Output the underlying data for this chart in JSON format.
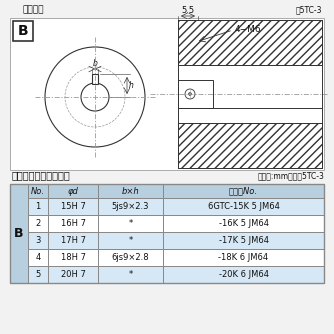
{
  "bg_color": "#f2f2f2",
  "title_diagram": "軸穴形状",
  "fig_label": "図5TC-3",
  "table_title": "軸穴形状コードー覧表",
  "table_unit": "（単位:mm）　表5TC-3",
  "b_label": "B",
  "dim_55": "5.5",
  "dim_4m6": "4−M6",
  "dim_b": "b",
  "dim_h": "h",
  "dim_phi": "φd",
  "header": [
    "No.",
    "φd",
    "b×h",
    "コードNo."
  ],
  "rows": [
    [
      "1",
      "15H 7",
      "5js9×2.3",
      "6GTC-15K 5 JM64"
    ],
    [
      "2",
      "16H 7",
      "*",
      "-16K 5 JM64"
    ],
    [
      "3",
      "17H 7",
      "*",
      "-17K 5 JM64"
    ],
    [
      "4",
      "18H 7",
      "6js9×2.8",
      "-18K 6 JM64"
    ],
    [
      "5",
      "20H 7",
      "*",
      "-20K 6 JM64"
    ]
  ],
  "row_colors": [
    "#d6e8f5",
    "#ffffff",
    "#d6e8f5",
    "#ffffff",
    "#d6e8f5"
  ],
  "header_color": "#b8cfe0",
  "border_color": "#888888",
  "text_color": "#111111",
  "line_color": "#333333",
  "dash_color": "#999999",
  "white": "#ffffff"
}
